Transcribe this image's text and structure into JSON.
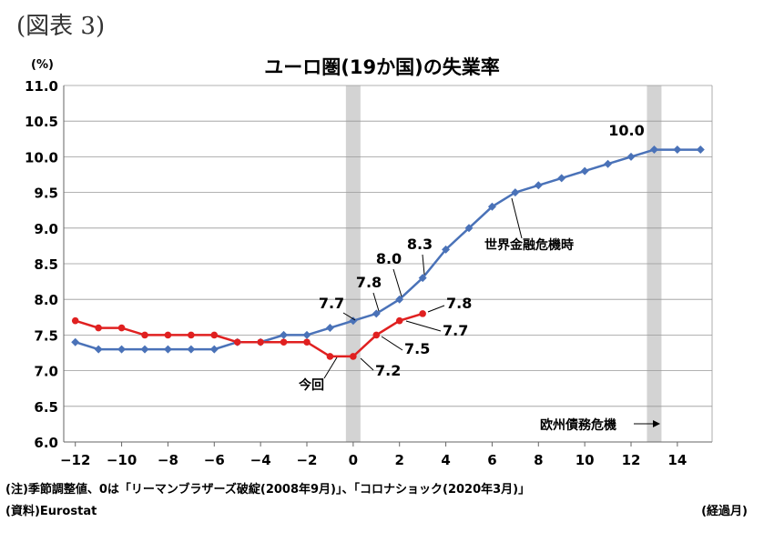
{
  "figure_label": "(図表 3)",
  "notes": {
    "note1": "(注)季節調整値、0は「リーマンブラザーズ破綻(2008年9月)」、「コロナショック(2020年3月)」",
    "source": "(資料)Eurostat",
    "x_unit": "(経過月)"
  },
  "chart_data": {
    "type": "line",
    "title": "ユーロ圏(19か国)の失業率",
    "ylabel": "(%)",
    "xlabel": "(経過月)",
    "xlim": [
      -12.5,
      15.5
    ],
    "ylim": [
      6.0,
      11.0
    ],
    "x_ticks": [
      -12,
      -10,
      -8,
      -6,
      -4,
      -2,
      0,
      2,
      4,
      6,
      8,
      10,
      12,
      14
    ],
    "x_tick_labels": [
      "−12",
      "−10",
      "−8",
      "−6",
      "−4",
      "−2",
      "0",
      "2",
      "4",
      "6",
      "8",
      "10",
      "12",
      "14"
    ],
    "y_ticks": [
      "6.0",
      "6.5",
      "7.0",
      "7.5",
      "8.0",
      "8.5",
      "9.0",
      "9.5",
      "10.0",
      "10.5",
      "11.0"
    ],
    "grid": "horizontal",
    "shaded_periods": [
      0,
      13
    ],
    "series": [
      {
        "name": "世界金融危機時",
        "color": "#4a72b8",
        "marker": "diamond",
        "x": [
          -12,
          -11,
          -10,
          -9,
          -8,
          -7,
          -6,
          -5,
          -4,
          -3,
          -2,
          -1,
          0,
          1,
          2,
          3,
          4,
          5,
          6,
          7,
          8,
          9,
          10,
          11,
          12,
          13,
          14,
          15
        ],
        "values": [
          7.4,
          7.3,
          7.3,
          7.3,
          7.3,
          7.3,
          7.3,
          7.4,
          7.4,
          7.5,
          7.5,
          7.6,
          7.7,
          7.8,
          8.0,
          8.3,
          8.7,
          9.0,
          9.3,
          9.5,
          9.6,
          9.7,
          9.8,
          9.9,
          10.0,
          10.1,
          10.1,
          10.1
        ]
      },
      {
        "name": "今回",
        "color": "#e02020",
        "marker": "circle",
        "x": [
          -12,
          -11,
          -10,
          -9,
          -8,
          -7,
          -6,
          -5,
          -4,
          -3,
          -2,
          -1,
          0,
          1,
          2,
          3
        ],
        "values": [
          7.7,
          7.6,
          7.6,
          7.5,
          7.5,
          7.5,
          7.5,
          7.4,
          7.4,
          7.4,
          7.4,
          7.2,
          7.2,
          7.5,
          7.7,
          7.8
        ]
      }
    ],
    "annotations": [
      {
        "text": "7.7"
      },
      {
        "text": "7.8"
      },
      {
        "text": "8.0"
      },
      {
        "text": "8.3"
      },
      {
        "text": "10.0"
      },
      {
        "text": "7.8"
      },
      {
        "text": "7.7"
      },
      {
        "text": "7.5"
      },
      {
        "text": "7.2"
      },
      {
        "text": "世界金融危機時"
      },
      {
        "text": "今回"
      },
      {
        "text": "欧州債務危機"
      }
    ]
  }
}
